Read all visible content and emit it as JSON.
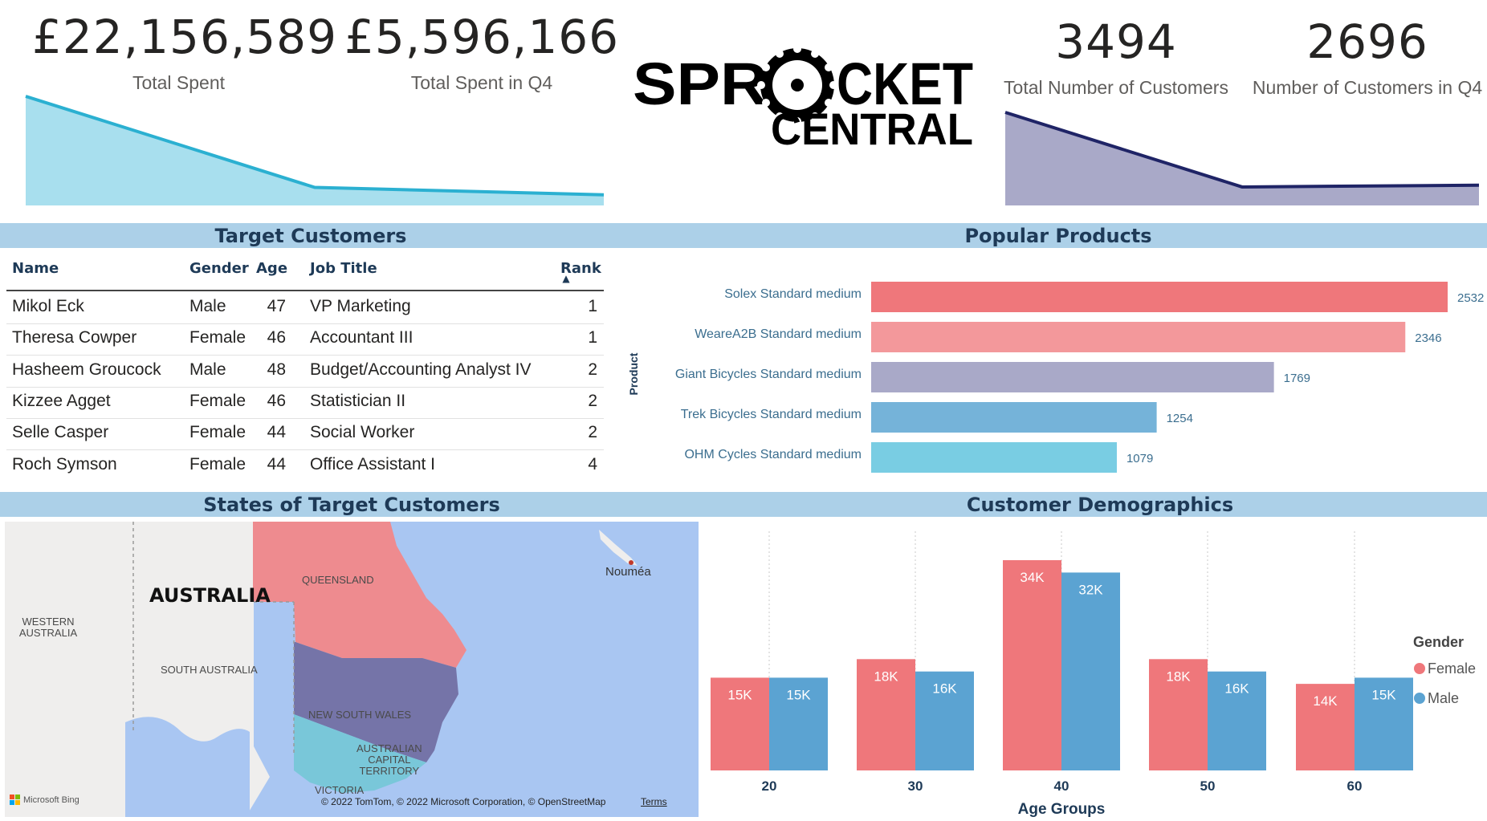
{
  "kpis": {
    "total_spent": {
      "value": "£22,156,589",
      "label": "Total Spent"
    },
    "total_spent_q4": {
      "value": "£5,596,166",
      "label": "Total Spent in Q4"
    },
    "total_customers": {
      "value": "3494",
      "label": "Total Number of Customers"
    },
    "customers_q4": {
      "value": "2696",
      "label": "Number of Customers in Q4"
    }
  },
  "logo": {
    "line1": "SPR",
    "line1b": "CKET",
    "line2": "CENTRAL"
  },
  "colors": {
    "band": "#acd0e8",
    "spent_line": "#2bb0d1",
    "spent_fill": "#a8dfee",
    "cust_line": "#1f2466",
    "cust_fill": "#a9a9c8",
    "female": "#ef777b",
    "male": "#5ba3d2",
    "title": "#1e3a57"
  },
  "sparklines": {
    "spent": {
      "values": [
        100,
        14,
        7
      ]
    },
    "customers": {
      "values": [
        100,
        17,
        19
      ]
    }
  },
  "target_customers": {
    "title": "Target Customers",
    "columns": [
      "Name",
      "Gender",
      "Age",
      "Job Title",
      "Rank"
    ],
    "sort_indicator": "▲",
    "rows": [
      {
        "name": "Mikol Eck",
        "gender": "Male",
        "age": "47",
        "job": "VP Marketing",
        "rank": "1"
      },
      {
        "name": "Theresa Cowper",
        "gender": "Female",
        "age": "46",
        "job": "Accountant III",
        "rank": "1"
      },
      {
        "name": "Hasheem Groucock",
        "gender": "Male",
        "age": "48",
        "job": "Budget/Accounting Analyst IV",
        "rank": "2"
      },
      {
        "name": "Kizzee Agget",
        "gender": "Female",
        "age": "46",
        "job": "Statistician II",
        "rank": "2"
      },
      {
        "name": "Selle Casper",
        "gender": "Female",
        "age": "44",
        "job": "Social Worker",
        "rank": "2"
      },
      {
        "name": "Roch Symson",
        "gender": "Female",
        "age": "44",
        "job": "Office Assistant I",
        "rank": "4"
      }
    ]
  },
  "map": {
    "title": "States of Target Customers",
    "labels": {
      "australia": "AUSTRALIA",
      "western": "WESTERN\nAUSTRALIA",
      "south": "SOUTH AUSTRALIA",
      "queensland": "QUEENSLAND",
      "nsw": "NEW SOUTH WALES",
      "act": "AUSTRALIAN\nCAPITAL\nTERRITORY",
      "victoria": "VICTORIA",
      "noumea": "Nouméa"
    },
    "bing": "Microsoft Bing",
    "copyright": "© 2022 TomTom, © 2022 Microsoft Corporation, © OpenStreetMap",
    "terms": "Terms"
  },
  "chart_data": [
    {
      "type": "bar",
      "orientation": "horizontal",
      "title": "Popular Products",
      "ylabel": "Product",
      "categories": [
        "Solex Standard medium",
        "WeareA2B Standard medium",
        "Giant Bicycles Standard medium",
        "Trek Bicycles Standard medium",
        "OHM Cycles Standard medium"
      ],
      "values": [
        2532,
        2346,
        1769,
        1254,
        1079
      ],
      "colors": [
        "#ef777b",
        "#f3989b",
        "#a9a9c8",
        "#75b3d9",
        "#79cde3"
      ],
      "xlim": [
        0,
        2532
      ]
    },
    {
      "type": "bar",
      "title": "Customer Demographics",
      "xlabel": "Age Groups",
      "categories": [
        "20",
        "30",
        "40",
        "50",
        "60"
      ],
      "series": [
        {
          "name": "Female",
          "values": [
            15000,
            18000,
            34000,
            18000,
            14000
          ],
          "labels": [
            "15K",
            "18K",
            "34K",
            "18K",
            "14K"
          ],
          "color": "#ef777b"
        },
        {
          "name": "Male",
          "values": [
            15000,
            16000,
            32000,
            16000,
            15000
          ],
          "labels": [
            "15K",
            "16K",
            "32K",
            "16K",
            "15K"
          ],
          "color": "#5ba3d2"
        }
      ],
      "legend_title": "Gender",
      "legend_position": "right",
      "ylim": [
        0,
        34000
      ]
    }
  ]
}
